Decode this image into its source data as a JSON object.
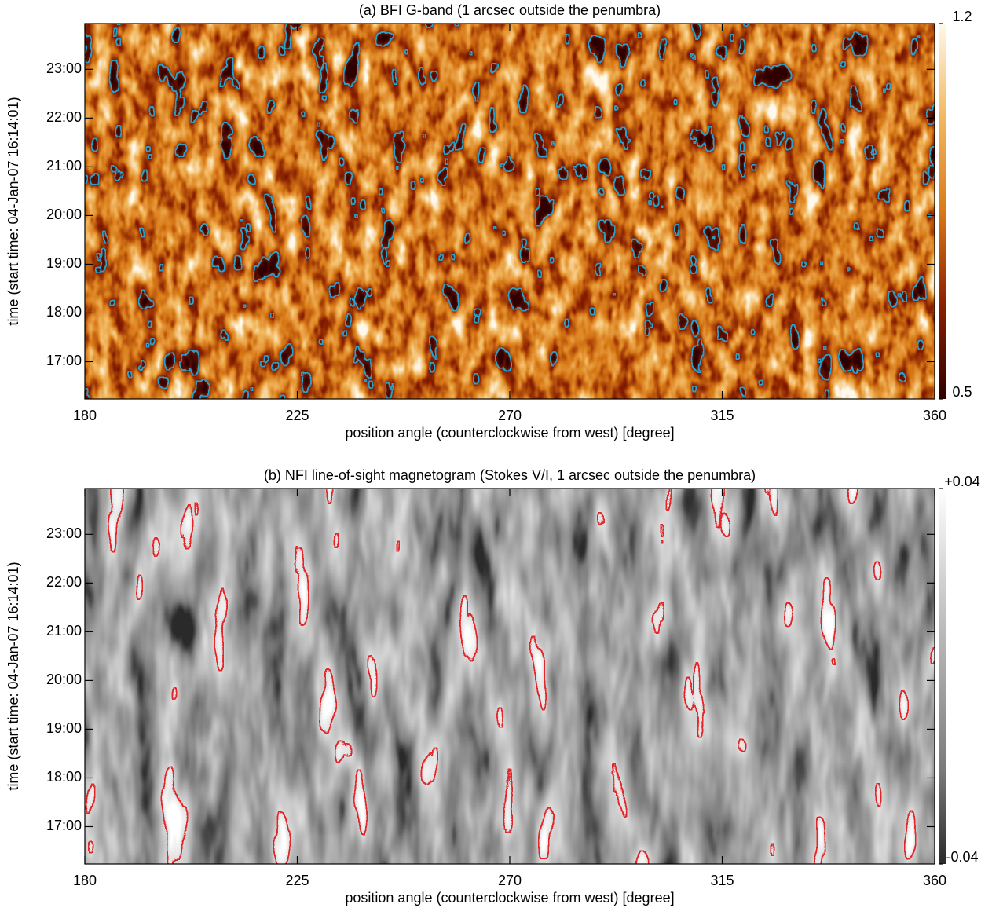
{
  "chart_data": [
    {
      "type": "heatmap",
      "title": "(a) BFI G-band (1 arcsec outside the penumbra)",
      "xlabel": "position angle (counterclockwise from west) [degree]",
      "ylabel": "time (start time: 04-Jan-07 16:14:01)",
      "xlim": [
        180,
        360
      ],
      "xticks": [
        180,
        225,
        270,
        315,
        360
      ],
      "ylim": [
        16.234,
        23.94
      ],
      "yticks": [
        {
          "value": 17,
          "label": "17:00"
        },
        {
          "value": 18,
          "label": "18:00"
        },
        {
          "value": 19,
          "label": "19:00"
        },
        {
          "value": 20,
          "label": "20:00"
        },
        {
          "value": 21,
          "label": "21:00"
        },
        {
          "value": 22,
          "label": "22:00"
        },
        {
          "value": 23,
          "label": "23:00"
        }
      ],
      "clim": [
        0.5,
        1.2
      ],
      "cticks": [
        0.5,
        1.2
      ],
      "colormap": [
        "#300000",
        "#8a2000",
        "#d87a18",
        "#f2b860",
        "#fff8ec"
      ],
      "contour_color": "#2b9fc9"
    },
    {
      "type": "heatmap",
      "title": "(b) NFI line-of-sight magnetogram (Stokes V/I, 1 arcsec outside the penumbra)",
      "xlabel": "position angle (counterclockwise from west) [degree]",
      "ylabel": "time (start time: 04-Jan-07 16:14:01)",
      "xlim": [
        180,
        360
      ],
      "xticks": [
        180,
        225,
        270,
        315,
        360
      ],
      "ylim": [
        16.234,
        23.94
      ],
      "yticks": [
        {
          "value": 17,
          "label": "17:00"
        },
        {
          "value": 18,
          "label": "18:00"
        },
        {
          "value": 19,
          "label": "19:00"
        },
        {
          "value": 20,
          "label": "20:00"
        },
        {
          "value": 21,
          "label": "21:00"
        },
        {
          "value": 22,
          "label": "22:00"
        },
        {
          "value": 23,
          "label": "23:00"
        }
      ],
      "clim": [
        -0.04,
        0.04
      ],
      "cticks": [
        -0.04,
        {
          "value": 0.04,
          "label": "+0.04"
        }
      ],
      "colormap": [
        "#2a2a2a",
        "#7a7a7a",
        "#a6a6a6",
        "#d0d0d0",
        "#ffffff"
      ],
      "contour_color": "#e3262a"
    }
  ]
}
